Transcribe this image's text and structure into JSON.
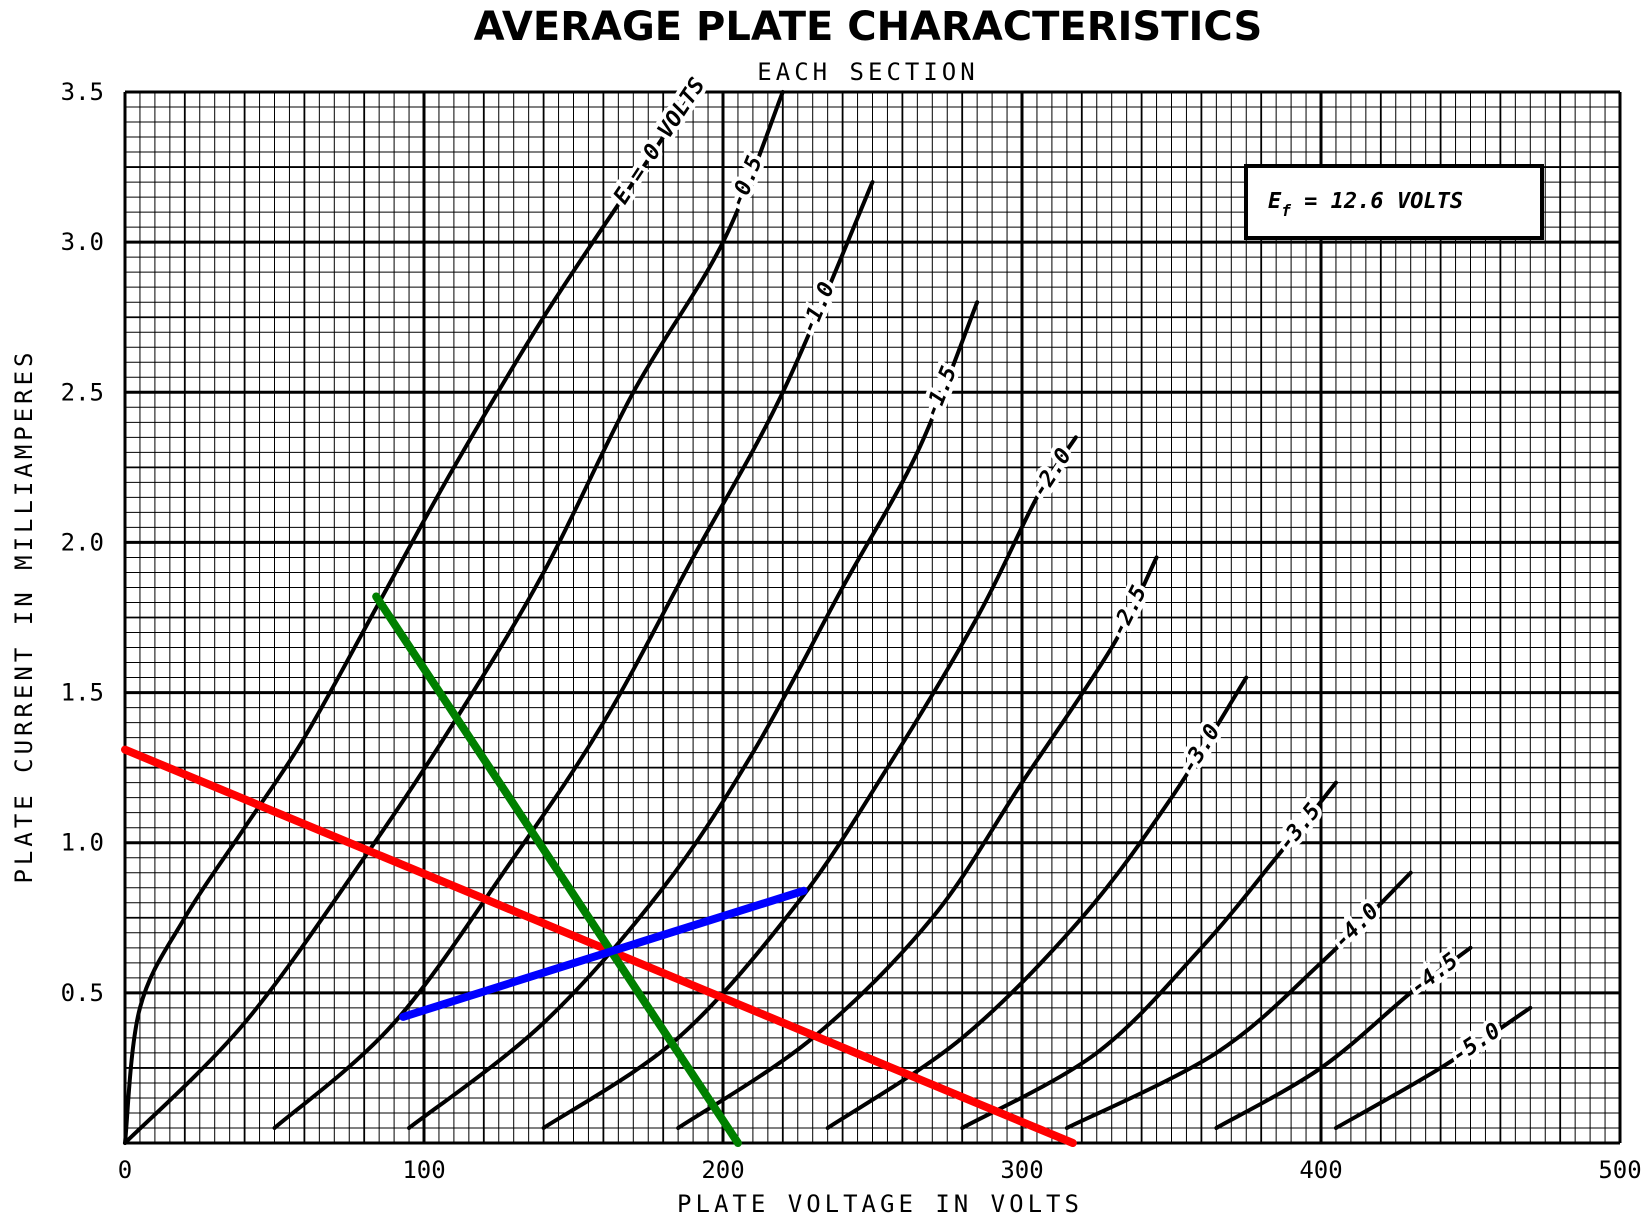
{
  "chart_data": {
    "type": "line",
    "title": "AVERAGE PLATE CHARACTERISTICS",
    "subtitle": "EACH SECTION",
    "xlabel": "PLATE VOLTAGE IN VOLTS",
    "ylabel": "PLATE CURRENT IN MILLIAMPERES",
    "xlim": [
      0,
      500
    ],
    "ylim": [
      0,
      3.5
    ],
    "x_ticks": [
      "0",
      "100",
      "200",
      "300",
      "400",
      "500"
    ],
    "y_ticks": [
      "0.5",
      "1.0",
      "1.5",
      "2.0",
      "2.5",
      "3.0",
      "3.5"
    ],
    "grid": true,
    "annotation": "E_f = 12.6 VOLTS",
    "annotation_parts": {
      "symbol": "E",
      "subscript": "f",
      "rest": " = 12.6 VOLTS"
    },
    "series": [
      {
        "name": "Ec = 0 VOLTS",
        "label": "E  = 0 VOLTS",
        "color": "#000000",
        "points": [
          [
            0,
            0
          ],
          [
            5,
            0.45
          ],
          [
            20,
            0.75
          ],
          [
            40,
            1.05
          ],
          [
            60,
            1.35
          ],
          [
            85,
            1.8
          ],
          [
            110,
            2.25
          ],
          [
            140,
            2.75
          ],
          [
            170,
            3.2
          ],
          [
            190,
            3.5
          ]
        ]
      },
      {
        "name": "-0.5",
        "label": "-0.5",
        "color": "#000000",
        "points": [
          [
            0,
            0
          ],
          [
            40,
            0.4
          ],
          [
            80,
            0.95
          ],
          [
            110,
            1.4
          ],
          [
            140,
            1.9
          ],
          [
            170,
            2.5
          ],
          [
            200,
            3.0
          ],
          [
            220,
            3.5
          ]
        ]
      },
      {
        "name": "-1.0",
        "label": "-1.0",
        "color": "#000000",
        "points": [
          [
            50,
            0.05
          ],
          [
            90,
            0.4
          ],
          [
            130,
            0.95
          ],
          [
            160,
            1.4
          ],
          [
            190,
            1.95
          ],
          [
            220,
            2.5
          ],
          [
            250,
            3.2
          ]
        ]
      },
      {
        "name": "-1.5",
        "label": "-1.5",
        "color": "#000000",
        "points": [
          [
            95,
            0.05
          ],
          [
            140,
            0.4
          ],
          [
            180,
            0.85
          ],
          [
            210,
            1.3
          ],
          [
            240,
            1.85
          ],
          [
            265,
            2.3
          ],
          [
            285,
            2.8
          ]
        ]
      },
      {
        "name": "-2.0",
        "label": "-2.0",
        "color": "#000000",
        "points": [
          [
            140,
            0.05
          ],
          [
            185,
            0.35
          ],
          [
            225,
            0.8
          ],
          [
            255,
            1.25
          ],
          [
            285,
            1.75
          ],
          [
            305,
            2.15
          ],
          [
            318,
            2.35
          ]
        ]
      },
      {
        "name": "-2.5",
        "label": "-2.5",
        "color": "#000000",
        "points": [
          [
            185,
            0.05
          ],
          [
            230,
            0.35
          ],
          [
            270,
            0.75
          ],
          [
            300,
            1.2
          ],
          [
            330,
            1.65
          ],
          [
            345,
            1.95
          ]
        ]
      },
      {
        "name": "-3.0",
        "label": "-3.0",
        "color": "#000000",
        "points": [
          [
            235,
            0.05
          ],
          [
            280,
            0.35
          ],
          [
            320,
            0.75
          ],
          [
            350,
            1.15
          ],
          [
            375,
            1.55
          ]
        ]
      },
      {
        "name": "-3.5",
        "label": "-3.5",
        "color": "#000000",
        "points": [
          [
            280,
            0.05
          ],
          [
            325,
            0.3
          ],
          [
            360,
            0.65
          ],
          [
            385,
            0.95
          ],
          [
            405,
            1.2
          ]
        ]
      },
      {
        "name": "-4.0",
        "label": "-4.0",
        "color": "#000000",
        "points": [
          [
            315,
            0.05
          ],
          [
            365,
            0.3
          ],
          [
            400,
            0.6
          ],
          [
            430,
            0.9
          ]
        ]
      },
      {
        "name": "-4.5",
        "label": "-4.5",
        "color": "#000000",
        "points": [
          [
            365,
            0.05
          ],
          [
            400,
            0.25
          ],
          [
            430,
            0.5
          ],
          [
            450,
            0.65
          ]
        ]
      },
      {
        "name": "-5.0",
        "label": "-5.0",
        "color": "#000000",
        "points": [
          [
            405,
            0.05
          ],
          [
            440,
            0.25
          ],
          [
            470,
            0.45
          ]
        ]
      }
    ],
    "overlay_lines": [
      {
        "color": "#ff0000",
        "points": [
          [
            0,
            1.31
          ],
          [
            317,
            0
          ]
        ]
      },
      {
        "color": "#008000",
        "points": [
          [
            84,
            1.82
          ],
          [
            205,
            0
          ]
        ]
      },
      {
        "color": "#0000ff",
        "points": [
          [
            93,
            0.42
          ],
          [
            227,
            0.84
          ]
        ]
      }
    ]
  }
}
